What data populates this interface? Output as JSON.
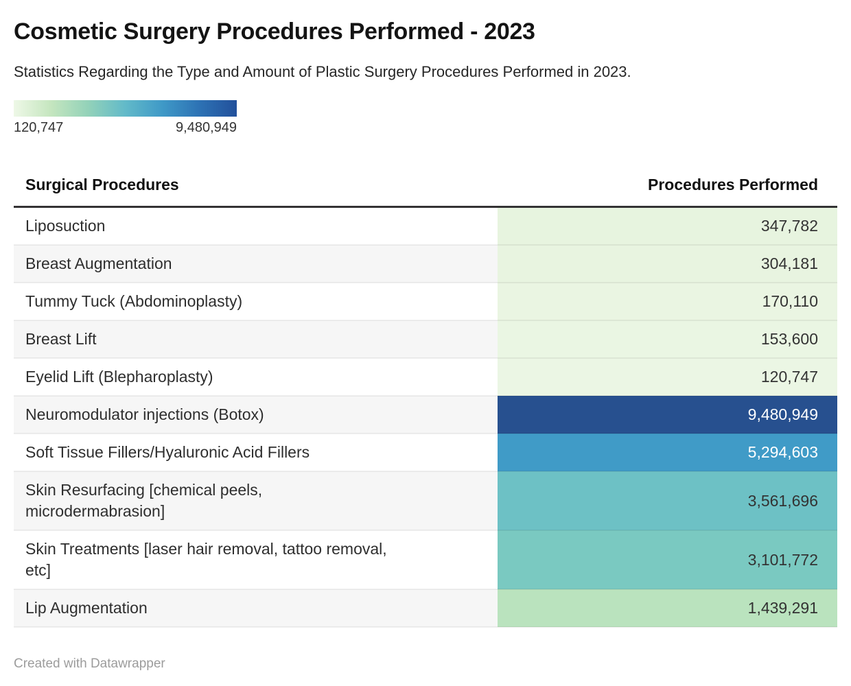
{
  "header": {
    "title": "Cosmetic Surgery Procedures Performed - 2023",
    "subtitle": "Statistics Regarding the Type and Amount of Plastic Surgery Procedures Performed in 2023."
  },
  "legend": {
    "min_label": "120,747",
    "max_label": "9,480,949",
    "gradient_colors": [
      "#eef8e7",
      "#c5e6bf",
      "#93d2b9",
      "#62bac9",
      "#3f99c7",
      "#2d72b4",
      "#22509b"
    ]
  },
  "table": {
    "col_procedures": "Surgical Procedures",
    "col_performed": "Procedures Performed",
    "rows": [
      {
        "procedure": "Liposuction",
        "value": "347,782",
        "cell_color": "#e7f4df",
        "value_text_color": "#333333"
      },
      {
        "procedure": "Breast Augmentation",
        "value": "304,181",
        "cell_color": "#e8f4e0",
        "value_text_color": "#333333"
      },
      {
        "procedure": "Tummy Tuck (Abdominoplasty)",
        "value": "170,110",
        "cell_color": "#eaf5e2",
        "value_text_color": "#333333"
      },
      {
        "procedure": "Breast Lift",
        "value": "153,600",
        "cell_color": "#eaf6e3",
        "value_text_color": "#333333"
      },
      {
        "procedure": "Eyelid Lift (Blepharoplasty)",
        "value": "120,747",
        "cell_color": "#ebf6e4",
        "value_text_color": "#333333"
      },
      {
        "procedure": "Neuromodulator injections (Botox)",
        "value": "9,480,949",
        "cell_color": "#27508f",
        "value_text_color": "#ffffff"
      },
      {
        "procedure": "Soft Tissue Fillers/Hyaluronic Acid Fillers",
        "value": "5,294,603",
        "cell_color": "#409bc7",
        "value_text_color": "#ffffff"
      },
      {
        "procedure": "Skin Resurfacing [chemical peels,\nmicrodermabrasion]",
        "value": "3,561,696",
        "cell_color": "#6dc1c5",
        "value_text_color": "#333333"
      },
      {
        "procedure": "Skin Treatments [laser hair removal, tattoo removal,\netc]",
        "value": "3,101,772",
        "cell_color": "#7ac9c1",
        "value_text_color": "#333333"
      },
      {
        "procedure": "Lip Augmentation",
        "value": "1,439,291",
        "cell_color": "#bae3be",
        "value_text_color": "#333333"
      }
    ]
  },
  "footer": {
    "credit": "Created with Datawrapper"
  },
  "chart_data": {
    "type": "table",
    "title": "Cosmetic Surgery Procedures Performed - 2023",
    "subtitle": "Statistics Regarding the Type and Amount of Plastic Surgery Procedures Performed in 2023.",
    "columns": [
      "Surgical Procedures",
      "Procedures Performed"
    ],
    "categories": [
      "Liposuction",
      "Breast Augmentation",
      "Tummy Tuck (Abdominoplasty)",
      "Breast Lift",
      "Eyelid Lift (Blepharoplasty)",
      "Neuromodulator injections (Botox)",
      "Soft Tissue Fillers/Hyaluronic Acid Fillers",
      "Skin Resurfacing [chemical peels, microdermabrasion]",
      "Skin Treatments [laser hair removal, tattoo removal, etc]",
      "Lip Augmentation"
    ],
    "values": [
      347782,
      304181,
      170110,
      153600,
      120747,
      9480949,
      5294603,
      3561696,
      3101772,
      1439291
    ],
    "color_scale": {
      "type": "continuous",
      "min": 120747,
      "max": 9480949,
      "min_color": "#eef8e7",
      "max_color": "#22509b",
      "palette": "green-to-blue"
    },
    "legend_position": "top-left",
    "legend_min_label": "120,747",
    "legend_max_label": "9,480,949"
  }
}
